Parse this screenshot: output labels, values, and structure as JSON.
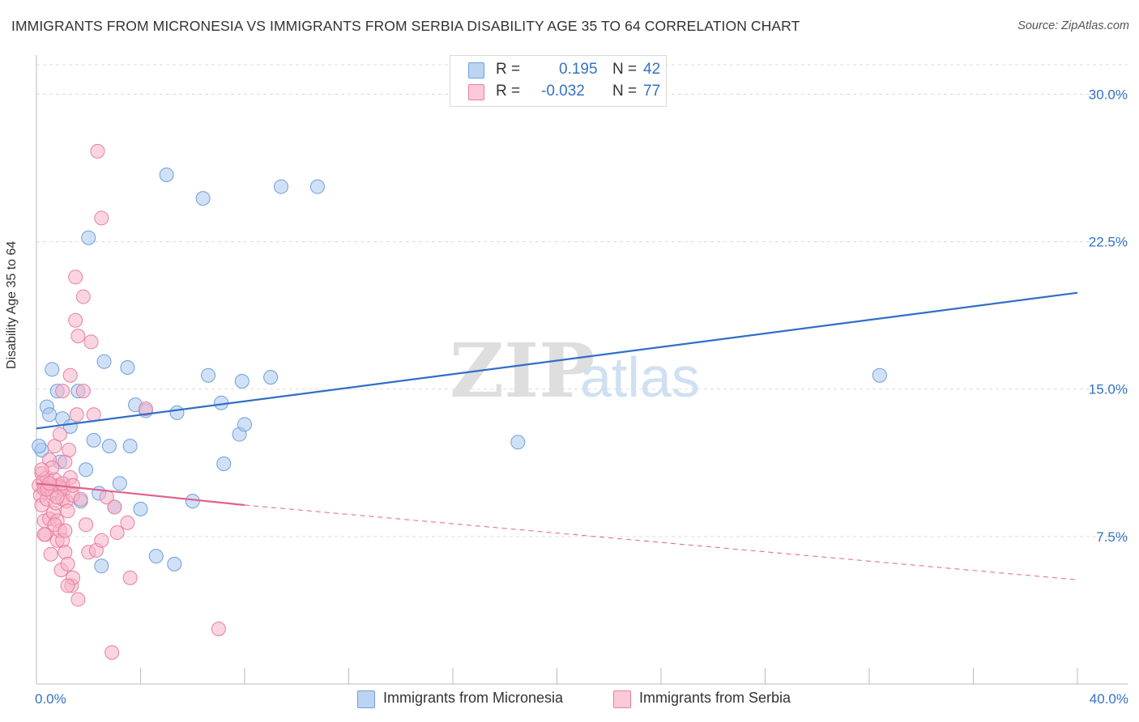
{
  "title": "IMMIGRANTS FROM MICRONESIA VS IMMIGRANTS FROM SERBIA DISABILITY AGE 35 TO 64 CORRELATION CHART",
  "source": "Source: ZipAtlas.com",
  "watermark": {
    "zip": "ZIP",
    "atlas": "atlas"
  },
  "legend_top": {
    "rows": [
      {
        "r_label": "R =",
        "r_value": "0.195",
        "n_label": "N =",
        "n_value": "42"
      },
      {
        "r_label": "R =",
        "r_value": "-0.032",
        "n_label": "N =",
        "n_value": "77"
      }
    ]
  },
  "legend_bottom": {
    "items": [
      {
        "label": "Immigrants from Micronesia"
      },
      {
        "label": "Immigrants from Serbia"
      }
    ]
  },
  "colors": {
    "micronesia_fill": "#a9c8f0",
    "micronesia_stroke": "#6f9fd8",
    "micronesia_line": "#2f6fc8",
    "serbia_fill": "#f6b3c8",
    "serbia_stroke": "#e87fa0",
    "serbia_line": "#e0628c",
    "tick_text": "#3472c4",
    "grid": "#dcdcdc"
  },
  "chart_data": {
    "type": "scatter",
    "title": "IMMIGRANTS FROM MICRONESIA VS IMMIGRANTS FROM SERBIA DISABILITY AGE 35 TO 64 CORRELATION CHART",
    "xlabel": "",
    "ylabel": "Disability Age 35 to 64",
    "xlim": [
      0,
      40
    ],
    "ylim": [
      0,
      31.5
    ],
    "x_tick_labels": [
      "0.0%",
      "40.0%"
    ],
    "y_ticks": [
      7.5,
      15.0,
      22.5,
      30.0
    ],
    "y_tick_labels": [
      "7.5%",
      "15.0%",
      "22.5%",
      "30.0%"
    ],
    "grid": "horizontal dashed",
    "legend_placement": "top-center and bottom",
    "series": [
      {
        "name": "Immigrants from Micronesia",
        "points": [
          [
            0.2,
            11.9
          ],
          [
            0.4,
            14.1
          ],
          [
            0.5,
            13.7
          ],
          [
            0.6,
            16.0
          ],
          [
            0.8,
            14.9
          ],
          [
            0.9,
            11.3
          ],
          [
            1.0,
            13.5
          ],
          [
            1.3,
            13.1
          ],
          [
            1.6,
            14.9
          ],
          [
            1.7,
            9.3
          ],
          [
            1.9,
            10.9
          ],
          [
            2.0,
            22.7
          ],
          [
            2.2,
            12.4
          ],
          [
            2.4,
            9.7
          ],
          [
            2.5,
            6.0
          ],
          [
            2.6,
            16.4
          ],
          [
            2.8,
            12.1
          ],
          [
            3.0,
            9.0
          ],
          [
            3.2,
            10.2
          ],
          [
            3.5,
            16.1
          ],
          [
            3.6,
            12.1
          ],
          [
            3.8,
            14.2
          ],
          [
            4.0,
            8.9
          ],
          [
            4.2,
            13.9
          ],
          [
            4.6,
            6.5
          ],
          [
            5.0,
            25.9
          ],
          [
            5.3,
            6.1
          ],
          [
            5.4,
            13.8
          ],
          [
            6.0,
            9.3
          ],
          [
            6.4,
            24.7
          ],
          [
            6.6,
            15.7
          ],
          [
            7.1,
            14.3
          ],
          [
            7.2,
            11.2
          ],
          [
            7.8,
            12.7
          ],
          [
            7.9,
            15.4
          ],
          [
            8.0,
            13.2
          ],
          [
            9.0,
            15.6
          ],
          [
            9.4,
            25.3
          ],
          [
            10.8,
            25.3
          ],
          [
            18.5,
            12.3
          ],
          [
            32.4,
            15.7
          ],
          [
            0.1,
            12.1
          ]
        ]
      },
      {
        "name": "Immigrants from Serbia",
        "points": [
          [
            0.1,
            10.1
          ],
          [
            0.15,
            9.6
          ],
          [
            0.2,
            10.7
          ],
          [
            0.2,
            9.1
          ],
          [
            0.25,
            10.3
          ],
          [
            0.3,
            9.9
          ],
          [
            0.3,
            8.3
          ],
          [
            0.35,
            7.6
          ],
          [
            0.4,
            10.5
          ],
          [
            0.4,
            9.4
          ],
          [
            0.45,
            10.0
          ],
          [
            0.5,
            8.4
          ],
          [
            0.5,
            11.4
          ],
          [
            0.55,
            6.6
          ],
          [
            0.6,
            10.1
          ],
          [
            0.6,
            9.7
          ],
          [
            0.65,
            8.7
          ],
          [
            0.7,
            12.1
          ],
          [
            0.7,
            10.4
          ],
          [
            0.75,
            9.2
          ],
          [
            0.8,
            7.3
          ],
          [
            0.8,
            8.3
          ],
          [
            0.85,
            10.1
          ],
          [
            0.9,
            10.0
          ],
          [
            0.9,
            7.8
          ],
          [
            0.95,
            5.8
          ],
          [
            1.0,
            9.4
          ],
          [
            1.0,
            7.3
          ],
          [
            1.0,
            14.9
          ],
          [
            1.05,
            9.9
          ],
          [
            1.1,
            11.3
          ],
          [
            1.1,
            6.7
          ],
          [
            1.15,
            9.3
          ],
          [
            1.2,
            8.8
          ],
          [
            1.2,
            6.1
          ],
          [
            1.25,
            11.9
          ],
          [
            1.3,
            10.5
          ],
          [
            1.3,
            15.7
          ],
          [
            1.35,
            5.0
          ],
          [
            1.4,
            5.4
          ],
          [
            1.4,
            9.6
          ],
          [
            1.5,
            18.5
          ],
          [
            1.5,
            20.7
          ],
          [
            1.55,
            13.7
          ],
          [
            1.6,
            17.7
          ],
          [
            1.6,
            4.3
          ],
          [
            1.7,
            9.4
          ],
          [
            1.8,
            19.7
          ],
          [
            1.8,
            14.9
          ],
          [
            1.9,
            8.1
          ],
          [
            2.0,
            6.7
          ],
          [
            2.1,
            17.4
          ],
          [
            2.2,
            13.7
          ],
          [
            2.3,
            6.8
          ],
          [
            2.35,
            27.1
          ],
          [
            2.5,
            7.3
          ],
          [
            2.5,
            23.7
          ],
          [
            2.7,
            9.5
          ],
          [
            2.9,
            1.6
          ],
          [
            3.0,
            9.0
          ],
          [
            3.1,
            7.7
          ],
          [
            3.5,
            8.2
          ],
          [
            3.6,
            5.4
          ],
          [
            4.2,
            14.0
          ],
          [
            7.0,
            2.8
          ],
          [
            0.3,
            7.6
          ],
          [
            0.6,
            11.0
          ],
          [
            0.9,
            12.7
          ],
          [
            1.2,
            5.0
          ],
          [
            0.4,
            9.9
          ],
          [
            0.7,
            8.1
          ],
          [
            1.0,
            10.2
          ],
          [
            1.4,
            10.1
          ],
          [
            0.2,
            10.9
          ],
          [
            0.5,
            10.2
          ],
          [
            1.1,
            7.8
          ],
          [
            0.8,
            9.5
          ]
        ]
      }
    ],
    "trend_lines": [
      {
        "series": "Immigrants from Micronesia",
        "x": [
          0,
          40
        ],
        "y": [
          13.0,
          19.9
        ],
        "style": "solid"
      },
      {
        "series": "Immigrants from Serbia",
        "x": [
          0,
          8
        ],
        "y": [
          10.2,
          9.1
        ],
        "style": "solid"
      },
      {
        "series": "Immigrants from Serbia",
        "x": [
          8,
          40
        ],
        "y": [
          9.1,
          5.3
        ],
        "style": "dashed"
      }
    ]
  }
}
